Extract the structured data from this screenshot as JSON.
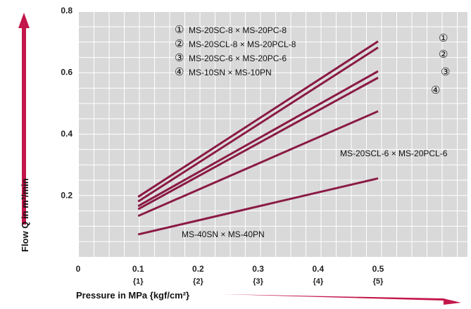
{
  "chart_data": {
    "type": "line",
    "title": "",
    "xlabel": "Pressure in MPa {kgf/cm²}",
    "ylabel": "Flow Q in m³/min",
    "xlim": [
      0,
      0.6
    ],
    "ylim": [
      0,
      0.8
    ],
    "grid": true,
    "x_ticks": [
      {
        "value": 0,
        "label": "0",
        "sub": ""
      },
      {
        "value": 0.1,
        "label": "0.1",
        "sub": "{1}"
      },
      {
        "value": 0.2,
        "label": "0.2",
        "sub": "{2}"
      },
      {
        "value": 0.3,
        "label": "0.3",
        "sub": "{3}"
      },
      {
        "value": 0.4,
        "label": "0.4",
        "sub": "{4}"
      },
      {
        "value": 0.5,
        "label": "0.5",
        "sub": "{5}"
      }
    ],
    "y_ticks": [
      {
        "value": 0.2,
        "label": "0.2"
      },
      {
        "value": 0.4,
        "label": "0.4"
      },
      {
        "value": 0.6,
        "label": "0.6"
      },
      {
        "value": 0.8,
        "label": "0.8"
      }
    ],
    "legend": [
      {
        "marker": "①",
        "text": "MS-20SC-8 × MS-20PC-8"
      },
      {
        "marker": "②",
        "text": "MS-20SCL-8 × MS-20PCL-8"
      },
      {
        "marker": "③",
        "text": "MS-20SC-6 × MS-20PC-6"
      },
      {
        "marker": "④",
        "text": "MS-10SN × MS-10PN"
      }
    ],
    "series": [
      {
        "marker": "①",
        "x": [
          0.1,
          0.5
        ],
        "y": [
          0.195,
          0.7
        ]
      },
      {
        "marker": "②",
        "x": [
          0.1,
          0.5
        ],
        "y": [
          0.18,
          0.68
        ]
      },
      {
        "marker": "③",
        "x": [
          0.1,
          0.5
        ],
        "y": [
          0.165,
          0.603
        ]
      },
      {
        "marker": "④",
        "x": [
          0.1,
          0.5
        ],
        "y": [
          0.155,
          0.582
        ]
      },
      {
        "name": "MS-20SCL-6 × MS-20PCL-6",
        "x": [
          0.1,
          0.5
        ],
        "y": [
          0.133,
          0.473
        ]
      },
      {
        "name": "MS-40SN × MS-40PN",
        "x": [
          0.1,
          0.5
        ],
        "y": [
          0.073,
          0.255
        ]
      }
    ],
    "colors": {
      "line": "#8a1a44",
      "arrow": "#c3164b",
      "plot_bg": "#d9d9d9",
      "grid": "#ffffff"
    }
  }
}
